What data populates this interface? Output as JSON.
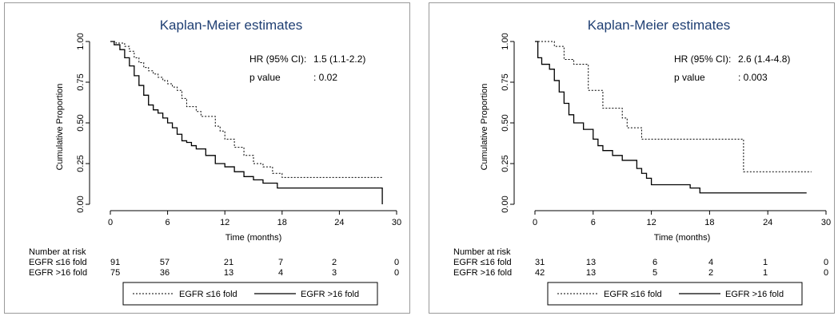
{
  "chart_data": [
    {
      "type": "line",
      "title": "Kaplan-Meier estimates",
      "xlabel": "Time (months)",
      "ylabel": "Cumulative Proportion",
      "xlim": [
        0,
        30
      ],
      "ylim": [
        0,
        1
      ],
      "x_ticks": [
        "0",
        "6",
        "12",
        "18",
        "24",
        "30"
      ],
      "y_ticks": [
        "0.00",
        "0.25",
        "0.50",
        "0.75",
        "1.00"
      ],
      "annotations": [
        {
          "label": "HR (95% CI):",
          "value": "1.5 (1.1-2.2)"
        },
        {
          "label": "p value",
          "value": ": 0.02"
        }
      ],
      "series": [
        {
          "name": "EGFR ≤16 fold",
          "style": "dotted",
          "x": [
            0,
            0.6,
            1.5,
            2,
            2.5,
            3,
            3.5,
            4,
            4.5,
            5,
            5.5,
            6,
            6.5,
            7,
            7.5,
            8,
            9,
            9.5,
            10,
            11,
            11.5,
            12,
            13,
            14,
            15,
            16,
            17,
            18,
            28.5
          ],
          "y": [
            1.0,
            0.99,
            0.97,
            0.94,
            0.9,
            0.87,
            0.84,
            0.82,
            0.8,
            0.78,
            0.76,
            0.74,
            0.72,
            0.7,
            0.65,
            0.6,
            0.57,
            0.54,
            0.54,
            0.48,
            0.45,
            0.4,
            0.35,
            0.3,
            0.25,
            0.23,
            0.19,
            0.165,
            0.165
          ]
        },
        {
          "name": "EGFR >16 fold",
          "style": "solid",
          "x": [
            0,
            0.4,
            1,
            1.5,
            2,
            2.5,
            3,
            3.5,
            4,
            4.5,
            5,
            5.5,
            6,
            6.5,
            7,
            7.5,
            8,
            8.5,
            9,
            10,
            11,
            11.5,
            12,
            13,
            14,
            15,
            16,
            17,
            17.5,
            28.5
          ],
          "y": [
            1.0,
            0.98,
            0.95,
            0.9,
            0.85,
            0.79,
            0.73,
            0.67,
            0.61,
            0.58,
            0.56,
            0.53,
            0.5,
            0.47,
            0.43,
            0.39,
            0.38,
            0.36,
            0.34,
            0.3,
            0.25,
            0.25,
            0.23,
            0.2,
            0.17,
            0.15,
            0.13,
            0.13,
            0.1,
            0.1
          ],
          "end_drop": 0.0
        }
      ],
      "risk_table": {
        "header": "Number at risk",
        "rows": [
          {
            "label": "EGFR ≤16 fold",
            "values": [
              "91",
              "57",
              "21",
              "7",
              "2",
              "0"
            ]
          },
          {
            "label": "EGFR >16 fold",
            "values": [
              "75",
              "36",
              "13",
              "4",
              "3",
              "0"
            ]
          }
        ]
      },
      "legend": {
        "position": "bottom",
        "items": [
          "EGFR ≤16 fold",
          "EGFR >16 fold"
        ]
      }
    },
    {
      "type": "line",
      "title": "Kaplan-Meier estimates",
      "xlabel": "Time (months)",
      "ylabel": "Cumulative Proportion",
      "xlim": [
        0,
        30
      ],
      "ylim": [
        0,
        1
      ],
      "x_ticks": [
        "0",
        "6",
        "12",
        "18",
        "24",
        "30"
      ],
      "y_ticks": [
        "0.00",
        "0.25",
        "0.50",
        "0.75",
        "1.00"
      ],
      "annotations": [
        {
          "label": "HR (95% CI):",
          "value": "2.6 (1.4-4.8)"
        },
        {
          "label": "p value",
          "value": ": 0.003"
        }
      ],
      "series": [
        {
          "name": "EGFR ≤16 fold",
          "style": "dotted",
          "x": [
            0,
            2,
            3,
            4,
            5.5,
            7,
            9,
            9.5,
            11,
            16,
            21.5,
            28.5
          ],
          "y": [
            1.0,
            0.97,
            0.89,
            0.86,
            0.7,
            0.59,
            0.53,
            0.47,
            0.4,
            0.4,
            0.2,
            0.2
          ]
        },
        {
          "name": "EGFR >16 fold",
          "style": "solid",
          "x": [
            0,
            0.3,
            0.7,
            1.5,
            2,
            2.5,
            3,
            3.5,
            4,
            5,
            6,
            6.5,
            7,
            8,
            9,
            10,
            10.5,
            11,
            11.5,
            12,
            13,
            14,
            16,
            17,
            28
          ],
          "y": [
            1.0,
            0.9,
            0.86,
            0.83,
            0.76,
            0.69,
            0.62,
            0.55,
            0.5,
            0.46,
            0.4,
            0.36,
            0.33,
            0.3,
            0.27,
            0.27,
            0.22,
            0.19,
            0.16,
            0.12,
            0.12,
            0.12,
            0.1,
            0.07,
            0.07
          ]
        }
      ],
      "risk_table": {
        "header": "Number at risk",
        "rows": [
          {
            "label": "EGFR ≤16 fold",
            "values": [
              "31",
              "13",
              "6",
              "4",
              "1",
              "0"
            ]
          },
          {
            "label": "EGFR >16 fold",
            "values": [
              "42",
              "13",
              "5",
              "2",
              "1",
              "0"
            ]
          }
        ]
      },
      "legend": {
        "position": "bottom",
        "items": [
          "EGFR ≤16 fold",
          "EGFR >16 fold"
        ]
      }
    }
  ]
}
